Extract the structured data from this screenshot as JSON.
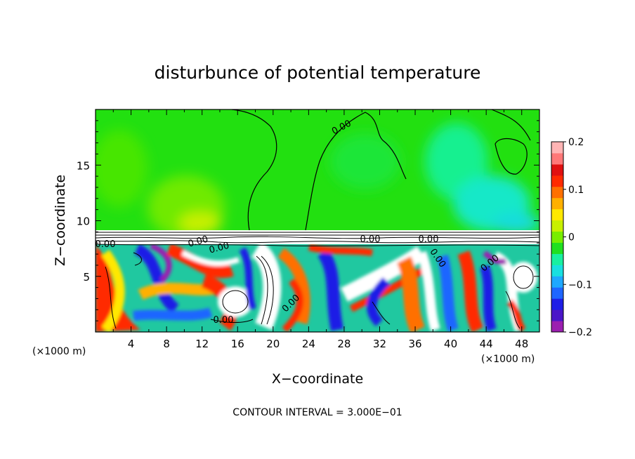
{
  "chart_data": {
    "type": "heatmap",
    "title": "disturbunce of potential temperature",
    "xlabel": "X−coordinate",
    "ylabel": "Z−coordinate",
    "x_unit_left": "(×1000 m)",
    "x_unit_right": "(×1000 m)",
    "xlim": [
      0,
      50
    ],
    "ylim": [
      0,
      20
    ],
    "x_ticks": [
      4,
      8,
      12,
      16,
      20,
      24,
      28,
      32,
      36,
      40,
      44,
      48
    ],
    "y_ticks": [
      5,
      10,
      15
    ],
    "colorbar": {
      "ticks": [
        0.2,
        0.1,
        0,
        -0.1,
        -0.2
      ],
      "tick_labels": [
        "0.2",
        "0.1",
        "0",
        "−0.1",
        "−0.2"
      ],
      "range": [
        -0.2,
        0.2
      ],
      "colors": [
        "#9b1fb0",
        "#4a16c8",
        "#1e1ee6",
        "#1e66ff",
        "#1ea8ff",
        "#18e0e0",
        "#18f0a0",
        "#20e020",
        "#78ee00",
        "#c8f000",
        "#ffe800",
        "#ffb000",
        "#ff7000",
        "#ff2a00",
        "#e01010",
        "#ff7878",
        "#ffb4b4"
      ]
    },
    "contour_labels": [
      "0.00",
      "0.00",
      "0.00",
      "0.00",
      "0.00",
      "0.00",
      "0.00",
      "0.00",
      "0.00",
      "0.00"
    ],
    "annotation": "CONTOUR INTERVAL = 3.000E−01"
  }
}
